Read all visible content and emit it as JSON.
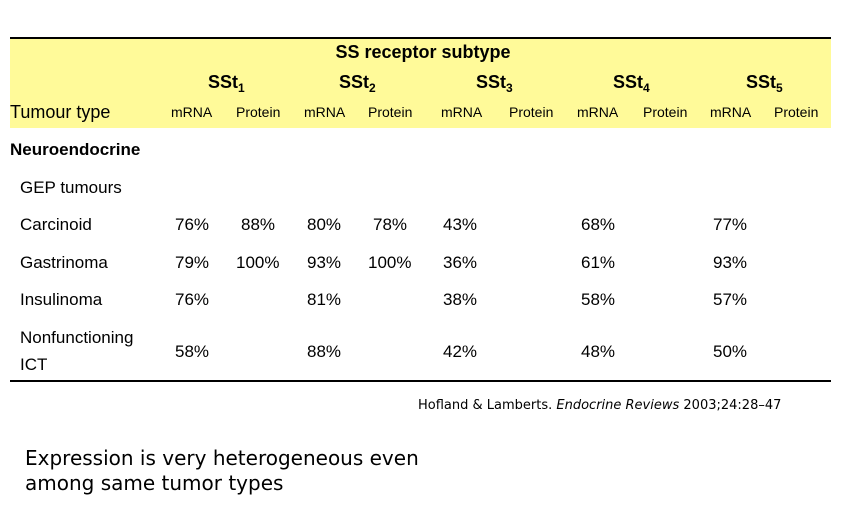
{
  "table": {
    "title": "SS receptor subtype",
    "tumour_type_label": "Tumour type",
    "subtypes": [
      {
        "base": "SSt",
        "sub": "1"
      },
      {
        "base": "SSt",
        "sub": "2"
      },
      {
        "base": "SSt",
        "sub": "3"
      },
      {
        "base": "SSt",
        "sub": "4"
      },
      {
        "base": "SSt",
        "sub": "5"
      }
    ],
    "col_mrna": "mRNA",
    "col_protein": "Protein",
    "section": "Neuroendocrine",
    "group": "GEP tumours",
    "rows": [
      {
        "label": "Carcinoid",
        "cells": [
          "76%",
          "88%",
          "80%",
          "78%",
          "43%",
          "",
          "68%",
          "",
          "77%",
          ""
        ]
      },
      {
        "label": "Gastrinoma",
        "cells": [
          "79%",
          "100%",
          "93%",
          "100%",
          "36%",
          "",
          "61%",
          "",
          "93%",
          ""
        ]
      },
      {
        "label": "Insulinoma",
        "cells": [
          "76%",
          "",
          "81%",
          "",
          "38%",
          "",
          "58%",
          "",
          "57%",
          ""
        ]
      },
      {
        "label_line1": "Nonfunctioning",
        "label_line2": "ICT",
        "cells": [
          "58%",
          "",
          "88%",
          "",
          "42%",
          "",
          "48%",
          "",
          "50%",
          ""
        ]
      }
    ]
  },
  "citation": {
    "authors": "Hofland & Lamberts.",
    "journal": "Endocrine Reviews",
    "ref": "2003;24:28–47"
  },
  "note": {
    "line1": "Expression is very heterogeneous even",
    "line2": "among same tumor types"
  }
}
